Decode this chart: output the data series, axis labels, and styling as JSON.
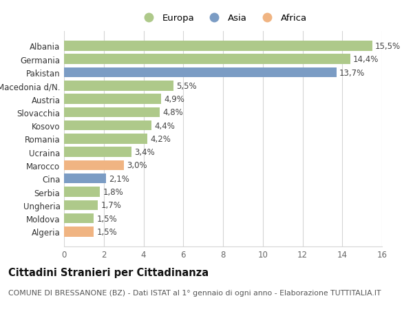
{
  "categories": [
    "Algeria",
    "Moldova",
    "Ungheria",
    "Serbia",
    "Cina",
    "Marocco",
    "Ucraina",
    "Romania",
    "Kosovo",
    "Slovacchia",
    "Austria",
    "Macedonia d/N.",
    "Pakistan",
    "Germania",
    "Albania"
  ],
  "values": [
    1.5,
    1.5,
    1.7,
    1.8,
    2.1,
    3.0,
    3.4,
    4.2,
    4.4,
    4.8,
    4.9,
    5.5,
    13.7,
    14.4,
    15.5
  ],
  "labels": [
    "1,5%",
    "1,5%",
    "1,7%",
    "1,8%",
    "2,1%",
    "3,0%",
    "3,4%",
    "4,2%",
    "4,4%",
    "4,8%",
    "4,9%",
    "5,5%",
    "13,7%",
    "14,4%",
    "15,5%"
  ],
  "continent": [
    "Africa",
    "Europa",
    "Europa",
    "Europa",
    "Asia",
    "Africa",
    "Europa",
    "Europa",
    "Europa",
    "Europa",
    "Europa",
    "Europa",
    "Asia",
    "Europa",
    "Europa"
  ],
  "colors": {
    "Europa": "#aec98a",
    "Asia": "#7b9cc4",
    "Africa": "#f0b482"
  },
  "legend": [
    {
      "label": "Europa",
      "color": "#aec98a"
    },
    {
      "label": "Asia",
      "color": "#7b9cc4"
    },
    {
      "label": "Africa",
      "color": "#f0b482"
    }
  ],
  "xlim": [
    0,
    16
  ],
  "xticks": [
    0,
    2,
    4,
    6,
    8,
    10,
    12,
    14,
    16
  ],
  "title": "Cittadini Stranieri per Cittadinanza",
  "subtitle": "COMUNE DI BRESSANONE (BZ) - Dati ISTAT al 1° gennaio di ogni anno - Elaborazione TUTTITALIA.IT",
  "background_color": "#ffffff",
  "grid_color": "#d5d5d5",
  "bar_height": 0.75,
  "label_fontsize": 8.5,
  "tick_fontsize": 8.5,
  "title_fontsize": 10.5,
  "subtitle_fontsize": 7.8
}
